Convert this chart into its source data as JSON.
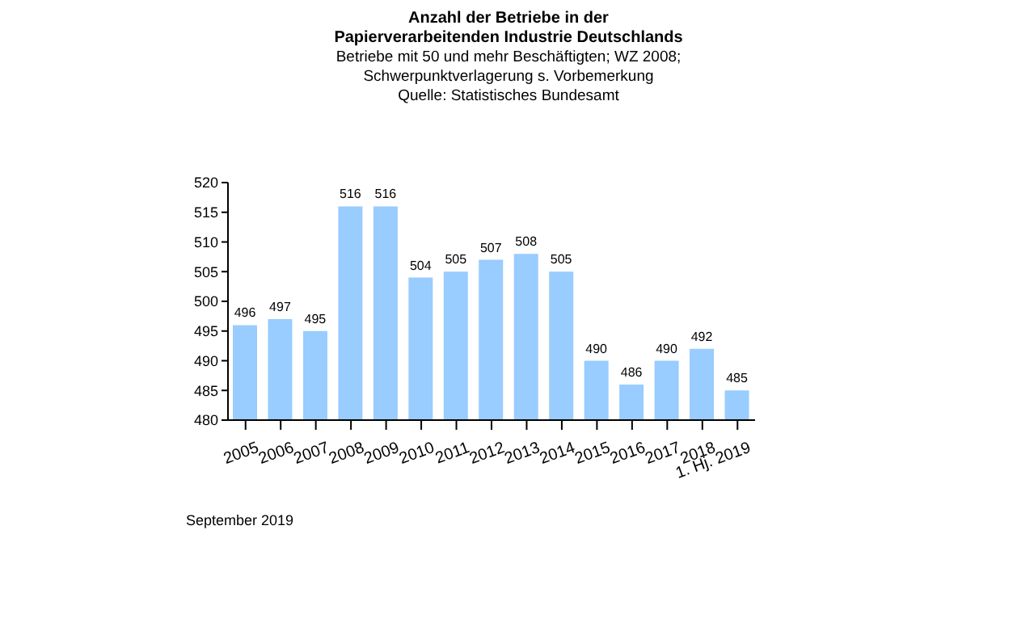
{
  "chart_data": {
    "type": "bar",
    "title": "Anzahl der Betriebe in der\nPapierverarbeitenden Industrie Deutschlands",
    "subtitle": "Betriebe mit 50 und mehr Beschäftigten;  WZ 2008;\nSchwerpunktverlagerung  s. Vorbemerkung",
    "annotations": [
      "Quelle:  Statistisches Bundesamt",
      "September 2019"
    ],
    "categories": [
      "2005",
      "2006",
      "2007",
      "2008",
      "2009",
      "2010",
      "2011",
      "2012",
      "2013",
      "2014",
      "2015",
      "2016",
      "2017",
      "2018",
      "1. Hj. 2019"
    ],
    "values": [
      496,
      497,
      495,
      516,
      516,
      504,
      505,
      507,
      508,
      505,
      490,
      486,
      490,
      492,
      485
    ],
    "color": "#99ccff",
    "ylim": [
      480,
      520
    ],
    "yticks": [
      480,
      485,
      490,
      495,
      500,
      505,
      510,
      515,
      520
    ],
    "data_labels": true,
    "grid": false,
    "legend": false
  }
}
